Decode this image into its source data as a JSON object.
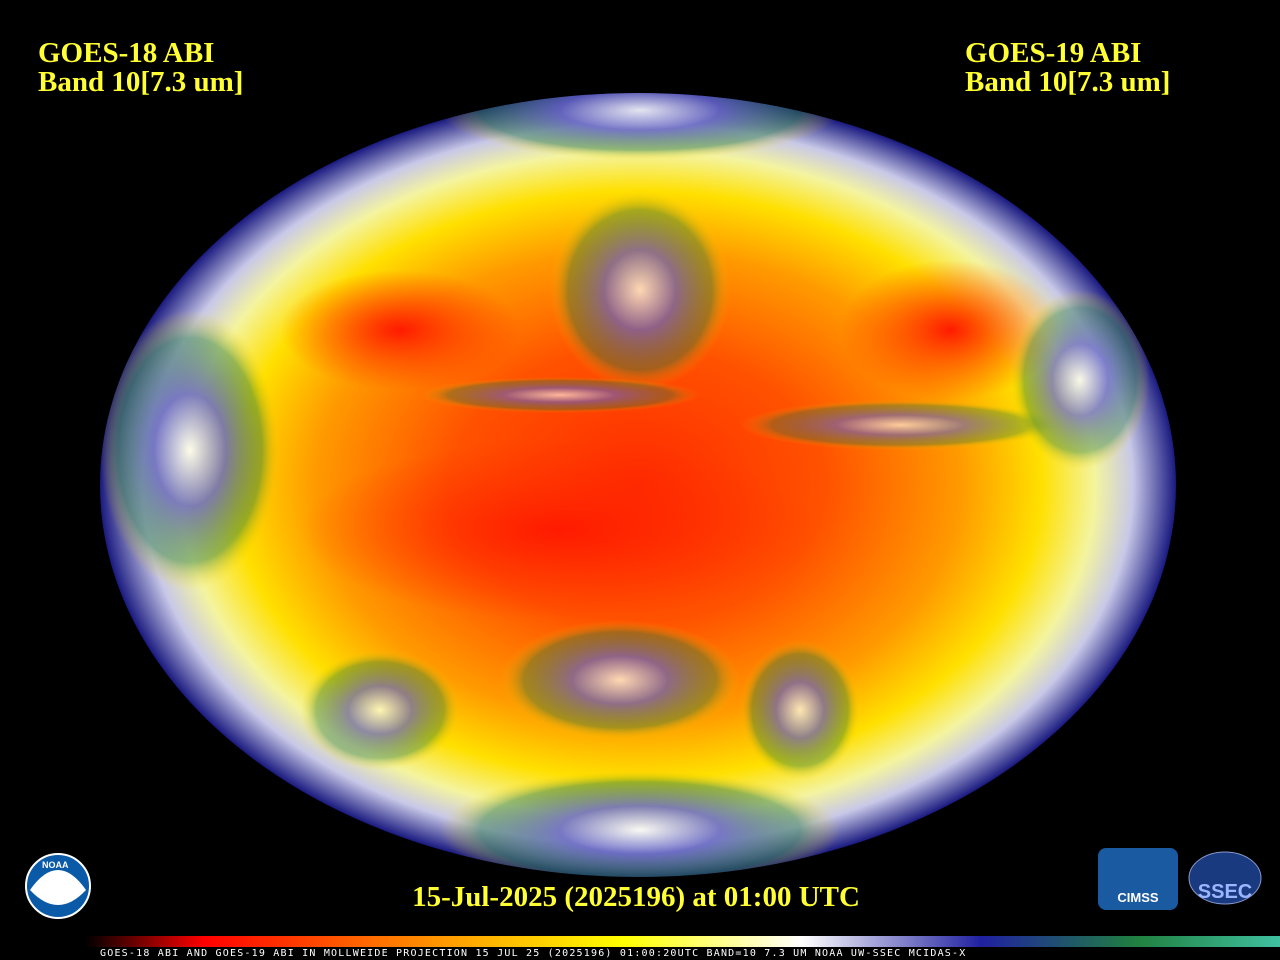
{
  "header": {
    "left": {
      "line1": "GOES-18 ABI",
      "line2": "Band 10[7.3 um]"
    },
    "right": {
      "line1": "GOES-19 ABI",
      "line2": "Band 10[7.3 um]"
    }
  },
  "timestamp": "15-Jul-2025 (2025196) at 01:00 UTC",
  "footer": "GOES-18 ABI AND GOES-19 ABI IN MOLLWEIDE PROJECTION 15 JUL 25 (2025196) 01:00:20UTC BAND=10 7.3 UM NOAA UW-SSEC MCIDAS-X",
  "logos": {
    "noaa": "NOAA",
    "cimss": "CIMSS",
    "ssec": "SSEC"
  }
}
